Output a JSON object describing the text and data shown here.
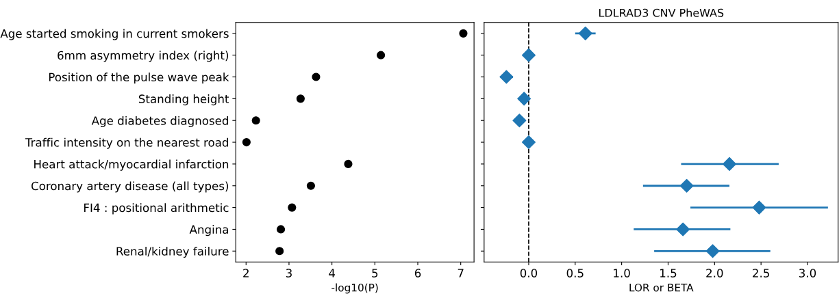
{
  "chart_data": [
    {
      "type": "scatter",
      "orientation": "horizontal",
      "xlabel": "-log10(P)",
      "categories": [
        "Age started smoking in current smokers",
        "6mm asymmetry index (right)",
        "Position of the pulse wave peak",
        "Standing height",
        "Age diabetes diagnosed",
        "Traffic intensity on the nearest road",
        "Heart attack/myocardial infarction",
        "Coronary artery disease (all types)",
        "FI4 : positional arithmetic",
        "Angina",
        "Renal/kidney failure"
      ],
      "series": [
        {
          "color": "#000000",
          "values": [
            7.06,
            5.14,
            3.63,
            3.27,
            2.23,
            2.01,
            4.38,
            3.51,
            3.07,
            2.81,
            2.78
          ]
        }
      ],
      "marker": "circle",
      "xlim": [
        1.76,
        7.31
      ],
      "xticks": [
        2,
        3,
        4,
        5,
        6,
        7
      ],
      "grid": false,
      "legend": false
    },
    {
      "type": "scatter",
      "orientation": "horizontal",
      "title": "LDLRAD3 CNV PheWAS",
      "xlabel": "LOR or BETA",
      "categories": [
        null,
        null,
        null,
        null,
        null,
        null,
        null,
        null,
        null,
        null,
        null
      ],
      "series": [
        {
          "color": "#1f77b4",
          "values": [
            0.61,
            0.0,
            -0.24,
            -0.05,
            -0.1,
            0.0,
            2.16,
            1.7,
            2.48,
            1.66,
            1.98
          ],
          "errors": [
            [
              0.5,
              0.72
            ],
            null,
            [
              -0.3,
              -0.17
            ],
            null,
            null,
            null,
            [
              1.64,
              2.69
            ],
            [
              1.23,
              2.16
            ],
            [
              1.74,
              3.22
            ],
            [
              1.13,
              2.17
            ],
            [
              1.35,
              2.6
            ]
          ]
        }
      ],
      "marker": "diamond",
      "xlim": [
        -0.48,
        3.33
      ],
      "xticks": [
        {
          "value": 0,
          "label": "0.0"
        },
        0.5,
        {
          "value": 1,
          "label": "1.0"
        },
        1.5,
        {
          "value": 2,
          "label": "2.0"
        },
        2.5,
        {
          "value": 3,
          "label": "3.0"
        }
      ],
      "ref_lines": [
        {
          "axis": "x",
          "value": 0,
          "color": "#000000",
          "line_style": "dashed"
        }
      ],
      "tick_labels": "x",
      "grid": false,
      "legend": false
    }
  ]
}
